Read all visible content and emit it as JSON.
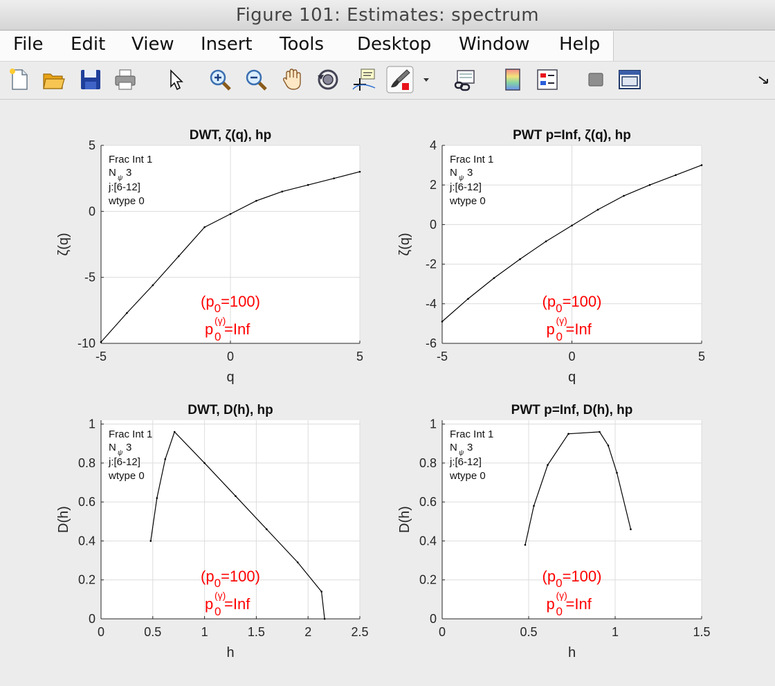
{
  "window": {
    "title": "Figure 101: Estimates: spectrum"
  },
  "menu": {
    "items": [
      "File",
      "Edit",
      "View",
      "Insert",
      "Tools",
      "Desktop",
      "Window",
      "Help"
    ]
  },
  "toolbar": {
    "icons": [
      "new-figure-icon",
      "open-file-icon",
      "save-icon",
      "print-icon",
      "pointer-icon",
      "zoom-in-icon",
      "zoom-out-icon",
      "pan-hand-icon",
      "rotate-3d-icon",
      "data-cursor-icon",
      "brush-icon",
      "brush-dropdown-icon",
      "link-plot-icon",
      "colorbar-icon",
      "legend-icon",
      "hide-plot-tools-icon",
      "show-plot-tools-icon",
      "dock-icon"
    ]
  },
  "colors": {
    "annotation": "#ff0000",
    "line": "#000000",
    "grid": "#dcdcdc"
  },
  "chart_data": [
    {
      "type": "line",
      "title": "DWT, ζ(q), hp",
      "xlabel": "q",
      "ylabel": "ζ(q)",
      "xlim": [
        -5,
        5
      ],
      "ylim": [
        -10,
        5
      ],
      "xticks": [
        -5,
        0,
        5
      ],
      "yticks": [
        -10,
        -5,
        0,
        5
      ],
      "xticklabels": [
        "-5",
        "0",
        "5"
      ],
      "yticklabels": [
        "-10",
        "-5",
        "0",
        "5"
      ],
      "grid": true,
      "x": [
        -5,
        -4,
        -3,
        -2,
        -1,
        0,
        1,
        2,
        3,
        4,
        5
      ],
      "y": [
        -9.9,
        -7.7,
        -5.6,
        -3.4,
        -1.2,
        -0.2,
        0.8,
        1.5,
        2.0,
        2.5,
        3.0
      ],
      "info": [
        "Frac Int 1",
        "N",
        "ψ",
        "3",
        "j:[6-12]",
        "wtype 0"
      ],
      "annotation": [
        "(p",
        "0",
        "=100)",
        "p",
        "(γ)",
        "0",
        "=Inf"
      ]
    },
    {
      "type": "line",
      "title": "PWT p=Inf, ζ(q), hp",
      "xlabel": "q",
      "ylabel": "ζ(q)",
      "xlim": [
        -5,
        5
      ],
      "ylim": [
        -6,
        4
      ],
      "xticks": [
        -5,
        0,
        5
      ],
      "yticks": [
        -6,
        -4,
        -2,
        0,
        2,
        4
      ],
      "xticklabels": [
        "-5",
        "0",
        "5"
      ],
      "yticklabels": [
        "-6",
        "-4",
        "-2",
        "0",
        "2",
        "4"
      ],
      "grid": true,
      "x": [
        -5,
        -4,
        -3,
        -2,
        -1,
        0,
        1,
        2,
        3,
        4,
        5
      ],
      "y": [
        -4.9,
        -3.75,
        -2.7,
        -1.75,
        -0.85,
        -0.05,
        0.75,
        1.45,
        2.0,
        2.5,
        3.0
      ],
      "info": [
        "Frac Int 1",
        "N",
        "ψ",
        "3",
        "j:[6-12]",
        "wtype 0"
      ],
      "annotation": [
        "(p",
        "0",
        "=100)",
        "p",
        "(γ)",
        "0",
        "=Inf"
      ]
    },
    {
      "type": "line",
      "title": "DWT, D(h), hp",
      "xlabel": "h",
      "ylabel": "D(h)",
      "xlim": [
        0,
        2.5
      ],
      "ylim": [
        0,
        1.02
      ],
      "xticks": [
        0,
        0.5,
        1,
        1.5,
        2,
        2.5
      ],
      "yticks": [
        0,
        0.2,
        0.4,
        0.6,
        0.8,
        1
      ],
      "xticklabels": [
        "0",
        "0.5",
        "1",
        "1.5",
        "2",
        "2.5"
      ],
      "yticklabels": [
        "0",
        "0.2",
        "0.4",
        "0.6",
        "0.8",
        "1"
      ],
      "grid": true,
      "x": [
        0.48,
        0.54,
        0.62,
        0.71,
        1.0,
        1.3,
        1.6,
        1.9,
        2.13,
        2.16
      ],
      "y": [
        0.4,
        0.62,
        0.82,
        0.96,
        0.8,
        0.63,
        0.46,
        0.29,
        0.14,
        0.0
      ],
      "info": [
        "Frac Int 1",
        "N",
        "ψ",
        "3",
        "j:[6-12]",
        "wtype 0"
      ],
      "annotation": [
        "(p",
        "0",
        "=100)",
        "p",
        "(γ)",
        "0",
        "=Inf"
      ]
    },
    {
      "type": "line",
      "title": "PWT p=Inf, D(h), hp",
      "xlabel": "h",
      "ylabel": "D(h)",
      "xlim": [
        0,
        1.5
      ],
      "ylim": [
        0,
        1.02
      ],
      "xticks": [
        0,
        0.5,
        1,
        1.5
      ],
      "yticks": [
        0,
        0.2,
        0.4,
        0.6,
        0.8,
        1
      ],
      "xticklabels": [
        "0",
        "0.5",
        "1",
        "1.5"
      ],
      "yticklabels": [
        "0",
        "0.2",
        "0.4",
        "0.6",
        "0.8",
        "1"
      ],
      "grid": true,
      "x": [
        0.48,
        0.53,
        0.61,
        0.73,
        0.91,
        0.96,
        1.01,
        1.09
      ],
      "y": [
        0.38,
        0.58,
        0.79,
        0.95,
        0.96,
        0.89,
        0.75,
        0.46
      ],
      "info": [
        "Frac Int 1",
        "N",
        "ψ",
        "3",
        "j:[6-12]",
        "wtype 0"
      ],
      "annotation": [
        "(p",
        "0",
        "=100)",
        "p",
        "(γ)",
        "0",
        "=Inf"
      ]
    }
  ]
}
